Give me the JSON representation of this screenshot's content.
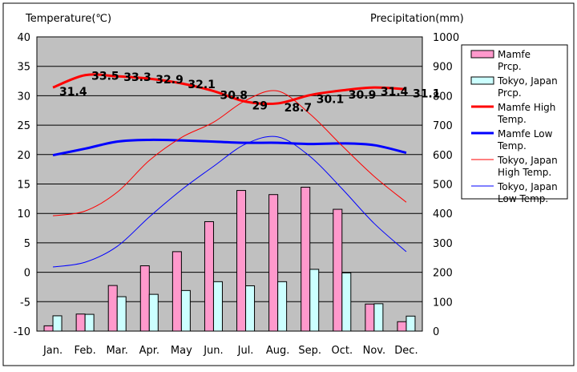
{
  "chart_data": {
    "type": "bar",
    "months": [
      "Jan.",
      "Feb.",
      "Mar.",
      "Apr.",
      "May",
      "Jun.",
      "Jul.",
      "Aug.",
      "Sep.",
      "Oct.",
      "Nov.",
      "Dec."
    ],
    "left_axis": {
      "label": "Temperature(℃)",
      "ylim": [
        -10,
        40
      ],
      "ticks": [
        "40",
        "35",
        "30",
        "25",
        "20",
        "15",
        "10",
        "5",
        "0",
        "-5",
        "-10"
      ]
    },
    "right_axis": {
      "label": "Precipitation(mm)",
      "ylim": [
        0,
        1000
      ],
      "ticks": [
        "1000",
        "900",
        "800",
        "700",
        "600",
        "500",
        "400",
        "300",
        "200",
        "100",
        "0"
      ]
    },
    "grid": "horizontal",
    "legend_position": "right",
    "colors": {
      "plot_background": "#c0c0c0",
      "mamfe_prcp": "#ff99cc",
      "tokyo_prcp": "#ccffff",
      "mamfe_high": "#ff0000",
      "mamfe_low": "#0000ff",
      "tokyo_high": "#ff0000",
      "tokyo_low": "#0000ff"
    },
    "precipitation_series": [
      {
        "name": "Mamfe Prcp.",
        "values": [
          18,
          58,
          155,
          222,
          270,
          372,
          478,
          464,
          489,
          414,
          92,
          32
        ]
      },
      {
        "name": "Tokyo, Japan Prcp.",
        "values": [
          52,
          57,
          117,
          125,
          138,
          168,
          154,
          168,
          210,
          198,
          93,
          51
        ]
      }
    ],
    "temperature_series": [
      {
        "name": "Mamfe High Temp.",
        "values": [
          31.4,
          33.5,
          33.3,
          32.9,
          32.1,
          30.8,
          29,
          28.7,
          30.1,
          30.9,
          31.4,
          31.1
        ],
        "labels": [
          "31.4",
          "33.5",
          "33.3",
          "32.9",
          "32.1",
          "30.8",
          "29",
          "28.7",
          "30.1",
          "30.9",
          "31.4",
          "31.1"
        ]
      },
      {
        "name": "Mamfe Low Temp.",
        "values": [
          19.9,
          21,
          22.2,
          22.5,
          22.4,
          22.2,
          22,
          22,
          21.8,
          21.9,
          21.6,
          20.3
        ]
      },
      {
        "name": "Tokyo, Japan High Temp.",
        "values": [
          9.6,
          10.4,
          13.6,
          19,
          22.9,
          25.5,
          29.2,
          30.8,
          26.9,
          21.5,
          16.3,
          11.9
        ]
      },
      {
        "name": "Tokyo, Japan Low Temp.",
        "values": [
          0.9,
          1.7,
          4.4,
          9.4,
          14,
          18,
          21.8,
          23,
          19.7,
          14.2,
          8.3,
          3.5
        ]
      }
    ],
    "legend": [
      {
        "label": "Mamfe Prcp.",
        "kind": "box",
        "color": "#ff99cc"
      },
      {
        "label": "Tokyo, Japan Prcp.",
        "kind": "box",
        "color": "#ccffff"
      },
      {
        "label": "Mamfe High Temp.",
        "kind": "line-thick",
        "color": "#ff0000"
      },
      {
        "label": "Mamfe Low Temp.",
        "kind": "line-thick",
        "color": "#0000ff"
      },
      {
        "label": "Tokyo, Japan High Temp.",
        "kind": "line-thin",
        "color": "#ff0000"
      },
      {
        "label": "Tokyo, Japan Low Temp.",
        "kind": "line-thin",
        "color": "#0000ff"
      }
    ]
  }
}
